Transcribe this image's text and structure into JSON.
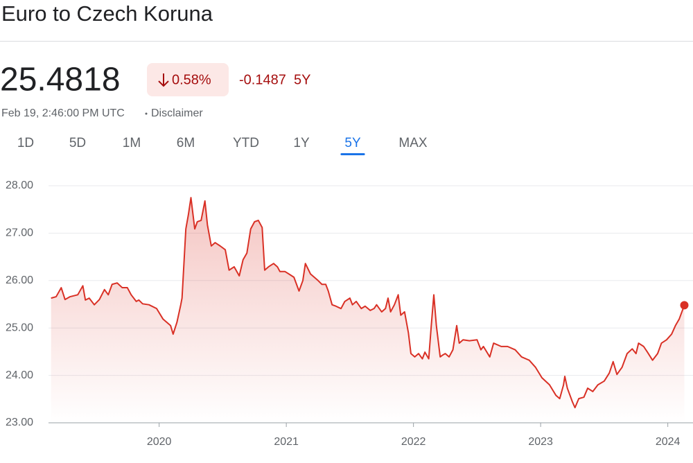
{
  "title": "Euro to Czech Koruna",
  "price": "25.4818",
  "change_percent": "0.58%",
  "change": "-0.1487",
  "timestamp": "Feb 19, 2:46:00 PM UTC",
  "disclaimer": "Disclaimer",
  "ranges": [
    "1D",
    "5D",
    "1M",
    "6M",
    "YTD",
    "1Y",
    "5Y",
    "MAX"
  ],
  "active_range": "5Y",
  "chart_data": {
    "type": "area",
    "color": "#d93025",
    "grid": true,
    "xlim": [
      2019.13,
      2024.16
    ],
    "xticks": [
      2020,
      2021,
      2022,
      2023,
      2024
    ],
    "ylim": [
      23,
      28
    ],
    "yticks": [
      {
        "value": 23,
        "label": "23.00"
      },
      {
        "value": 24,
        "label": "24.00"
      },
      {
        "value": 25,
        "label": "25.00"
      },
      {
        "value": 26,
        "label": "26.00"
      },
      {
        "value": 27,
        "label": "27.00"
      },
      {
        "value": 28,
        "label": "28.00"
      }
    ],
    "x": [
      2019.15,
      2019.19,
      2019.23,
      2019.26,
      2019.3,
      2019.36,
      2019.4,
      2019.42,
      2019.45,
      2019.49,
      2019.53,
      2019.57,
      2019.6,
      2019.63,
      2019.67,
      2019.71,
      2019.75,
      2019.78,
      2019.82,
      2019.84,
      2019.87,
      2019.92,
      2019.98,
      2020.03,
      2020.09,
      2020.11,
      2020.14,
      2020.17,
      2020.18,
      2020.21,
      2020.23,
      2020.25,
      2020.28,
      2020.3,
      2020.33,
      2020.36,
      2020.38,
      2020.41,
      2020.44,
      2020.48,
      2020.52,
      2020.55,
      2020.59,
      2020.63,
      2020.66,
      2020.69,
      2020.72,
      2020.75,
      2020.78,
      2020.81,
      2020.83,
      2020.86,
      2020.9,
      2020.93,
      2020.95,
      2020.99,
      2021.02,
      2021.06,
      2021.1,
      2021.13,
      2021.15,
      2021.19,
      2021.22,
      2021.25,
      2021.28,
      2021.31,
      2021.33,
      2021.36,
      2021.39,
      2021.43,
      2021.46,
      2021.5,
      2021.52,
      2021.55,
      2021.59,
      2021.62,
      2021.66,
      2021.69,
      2021.71,
      2021.75,
      2021.78,
      2021.8,
      2021.82,
      2021.85,
      2021.88,
      2021.9,
      2021.93,
      2021.96,
      2021.98,
      2022.01,
      2022.04,
      2022.07,
      2022.09,
      2022.12,
      2022.14,
      2022.16,
      2022.18,
      2022.21,
      2022.23,
      2022.25,
      2022.28,
      2022.31,
      2022.34,
      2022.36,
      2022.39,
      2022.44,
      2022.5,
      2022.53,
      2022.55,
      2022.6,
      2022.63,
      2022.69,
      2022.74,
      2022.8,
      2022.85,
      2022.91,
      2022.96,
      2023.01,
      2023.07,
      2023.12,
      2023.15,
      2023.18,
      2023.19,
      2023.21,
      2023.25,
      2023.27,
      2023.3,
      2023.34,
      2023.37,
      2023.41,
      2023.45,
      2023.5,
      2023.54,
      2023.57,
      2023.6,
      2023.64,
      2023.68,
      2023.72,
      2023.75,
      2023.77,
      2023.81,
      2023.84,
      2023.88,
      2023.92,
      2023.95,
      2023.99,
      2024.03,
      2024.06,
      2024.09,
      2024.13
    ],
    "values": [
      25.63,
      25.66,
      25.85,
      25.6,
      25.66,
      25.7,
      25.89,
      25.59,
      25.63,
      25.49,
      25.6,
      25.81,
      25.7,
      25.92,
      25.95,
      25.85,
      25.85,
      25.7,
      25.56,
      25.59,
      25.51,
      25.49,
      25.41,
      25.19,
      25.05,
      24.87,
      25.12,
      25.49,
      25.63,
      27.09,
      27.39,
      27.75,
      27.09,
      27.24,
      27.27,
      27.68,
      27.17,
      26.73,
      26.8,
      26.73,
      26.65,
      26.22,
      26.29,
      26.1,
      26.44,
      26.58,
      27.09,
      27.24,
      27.27,
      27.12,
      26.22,
      26.29,
      26.36,
      26.29,
      26.19,
      26.19,
      26.14,
      26.07,
      25.78,
      26.0,
      26.36,
      26.14,
      26.07,
      26.0,
      25.92,
      25.92,
      25.78,
      25.49,
      25.46,
      25.41,
      25.56,
      25.63,
      25.49,
      25.56,
      25.41,
      25.46,
      25.37,
      25.41,
      25.49,
      25.34,
      25.41,
      25.63,
      25.34,
      25.49,
      25.7,
      25.27,
      25.34,
      24.9,
      24.46,
      24.39,
      24.46,
      24.35,
      24.49,
      24.35,
      25.05,
      25.7,
      25.05,
      24.39,
      24.43,
      24.46,
      24.39,
      24.54,
      25.05,
      24.68,
      24.75,
      24.73,
      24.75,
      24.54,
      24.61,
      24.39,
      24.68,
      24.61,
      24.61,
      24.54,
      24.39,
      24.32,
      24.17,
      23.95,
      23.8,
      23.58,
      23.51,
      23.8,
      23.98,
      23.73,
      23.44,
      23.32,
      23.51,
      23.54,
      23.73,
      23.66,
      23.8,
      23.88,
      24.05,
      24.29,
      24.02,
      24.17,
      24.46,
      24.56,
      24.46,
      24.68,
      24.61,
      24.49,
      24.32,
      24.46,
      24.68,
      24.75,
      24.87,
      25.05,
      25.19,
      25.48
    ]
  }
}
